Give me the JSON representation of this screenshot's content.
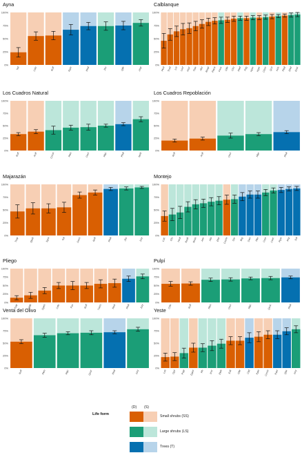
{
  "colors": {
    "SS": "#d95f02",
    "LS": "#1b9e77",
    "T": "#0570b0",
    "SS_bg": "#f7cfb4",
    "LS_bg": "#bce6da",
    "T_bg": "#b7d4ea"
  },
  "chart_data": [
    {
      "type": "bar",
      "title": "Ayna",
      "ylim": [
        0,
        100
      ],
      "yticks": [
        "0%",
        "25%",
        "50%",
        "75%",
        "100%"
      ],
      "categories": [
        "Tcil",
        "Cclu",
        "Roff",
        "Pgre",
        "Phal",
        "Jfru",
        "Qile",
        "Jrep"
      ],
      "forms": [
        "SS",
        "SS",
        "SS",
        "T",
        "T",
        "LS",
        "T",
        "LS"
      ],
      "values": [
        24,
        55,
        56,
        67,
        74,
        74,
        75,
        80
      ],
      "errors": [
        9,
        8,
        8,
        10,
        7,
        8,
        8,
        6
      ]
    },
    {
      "type": "bar",
      "title": "Calblanque",
      "ylim": [
        0,
        100
      ],
      "yticks": [
        "0%",
        "25%",
        "50%",
        "75%",
        "100%"
      ],
      "categories": [
        "Pkul",
        "Tcod",
        "Ltri",
        "Lsuf",
        "Hsyr",
        "Thar",
        "Alut",
        "Reap",
        "Flaca",
        "Foss",
        "Gfle",
        "Cfru",
        "Pbel",
        "Prlg",
        "Hpor",
        "Hgar",
        "Cfum",
        "Qcri",
        "Acis",
        "Pbal",
        "Ehel",
        "Eraz"
      ],
      "forms": [
        "SS",
        "SS",
        "SS",
        "SS",
        "SS",
        "SS",
        "SS",
        "SS",
        "SS",
        "LS",
        "SS",
        "SS",
        "LS",
        "SS",
        "LS",
        "SS",
        "LS",
        "SS",
        "LS",
        "SS",
        "LS",
        "LS"
      ],
      "values": [
        46,
        58,
        64,
        68,
        70,
        74,
        78,
        82,
        84,
        85,
        86,
        88,
        89,
        89,
        90,
        90,
        91,
        92,
        93,
        94,
        95,
        96
      ],
      "errors": [
        14,
        11,
        10,
        11,
        10,
        9,
        8,
        7,
        6,
        6,
        5,
        5,
        4,
        4,
        4,
        4,
        4,
        4,
        3,
        3,
        4,
        4
      ]
    },
    {
      "type": "bar",
      "title": "Los Cuadros Natural",
      "ylim": [
        0,
        100
      ],
      "yticks": [
        "0%",
        "25%",
        "50%",
        "75%",
        "100%"
      ],
      "categories": [
        "Roff",
        "Avyl",
        "Cmon",
        "Plen",
        "Osur",
        "Rlyc",
        "Phal",
        "Nerk"
      ],
      "forms": [
        "SS",
        "SS",
        "LS",
        "LS",
        "LS",
        "LS",
        "T",
        "LS"
      ],
      "values": [
        33,
        38,
        41,
        46,
        47,
        50,
        53,
        63
      ],
      "errors": [
        3,
        4,
        8,
        5,
        6,
        3,
        3,
        5
      ]
    },
    {
      "type": "bar",
      "title": "Los Cuadros Repoblación",
      "ylim": [
        0,
        100
      ],
      "yticks": [
        "0%",
        "25%",
        "50%",
        "75%",
        "100%"
      ],
      "categories": [
        "Roff",
        "Avyl",
        "Osur",
        "Rlyc",
        "Phal"
      ],
      "forms": [
        "SS",
        "SS",
        "LS",
        "LS",
        "T"
      ],
      "values": [
        20,
        24,
        30,
        33,
        37
      ],
      "errors": [
        3,
        3,
        5,
        3,
        3
      ]
    },
    {
      "type": "bar",
      "title": "Majarazán",
      "ylim": [
        0,
        100
      ],
      "yticks": [
        "0%",
        "25%",
        "50%",
        "75%",
        "100%"
      ],
      "categories": [
        "Tcap",
        "Sbub",
        "Sgra",
        "Tcil",
        "Gsco",
        "Roff",
        "Phal",
        "Jfru",
        "Jory"
      ],
      "forms": [
        "SS",
        "SS",
        "SS",
        "SS",
        "SS",
        "SS",
        "T",
        "LS",
        "LS"
      ],
      "values": [
        47,
        53,
        53,
        55,
        79,
        84,
        91,
        92,
        94
      ],
      "errors": [
        13,
        11,
        9,
        10,
        6,
        5,
        3,
        3,
        2
      ]
    },
    {
      "type": "bar",
      "title": "Montejo",
      "ylim": [
        0,
        100
      ],
      "yticks": [
        "0%",
        "25%",
        "50%",
        "75%",
        "100%"
      ],
      "categories": [
        "Lstc",
        "Gfo",
        "Hsal",
        "Rsab",
        "Rcan",
        "Jrec",
        "Alsi",
        "Ehtr",
        "Cscrix",
        "Ssc",
        "Ileg",
        "Swo",
        "Pler",
        "Cres",
        "Ccec",
        "Pgre",
        "Pcp",
        "Sol"
      ],
      "forms": [
        "SS",
        "LS",
        "LS",
        "LS",
        "LS",
        "LS",
        "LS",
        "LS",
        "SS",
        "LS",
        "T",
        "T",
        "T",
        "LS",
        "LS",
        "T",
        "T",
        "T"
      ],
      "values": [
        38,
        41,
        45,
        56,
        61,
        63,
        66,
        68,
        70,
        71,
        76,
        80,
        80,
        84,
        88,
        89,
        91,
        92
      ],
      "errors": [
        10,
        12,
        12,
        10,
        9,
        8,
        8,
        8,
        9,
        8,
        8,
        7,
        7,
        6,
        5,
        5,
        4,
        4
      ]
    },
    {
      "type": "bar",
      "title": "Pliego",
      "ylim": [
        0,
        100
      ],
      "yticks": [
        "0%",
        "25%",
        "50%",
        "75%",
        "100%"
      ],
      "categories": [
        "Tcap",
        "Hhlb",
        "Dpen",
        "Cclu",
        "Fav",
        "Roff",
        "Tvero",
        "Ravi",
        "Phal",
        "Jory"
      ],
      "forms": [
        "SS",
        "SS",
        "SS",
        "SS",
        "SS",
        "SS",
        "SS",
        "SS",
        "T",
        "LS"
      ],
      "values": [
        14,
        21,
        35,
        50,
        50,
        50,
        55,
        57,
        70,
        77
      ],
      "errors": [
        6,
        9,
        9,
        9,
        12,
        9,
        12,
        12,
        8,
        7
      ]
    },
    {
      "type": "bar",
      "title": "Pulpí",
      "ylim": [
        0,
        100
      ],
      "yticks": [
        "0%",
        "25%",
        "50%",
        "75%",
        "100%"
      ],
      "categories": [
        "Cclu",
        "Roff",
        "Plen",
        "Osur",
        "Rlyc",
        "Qcoc",
        "Phal"
      ],
      "forms": [
        "SS",
        "SS",
        "LS",
        "LS",
        "LS",
        "LS",
        "T"
      ],
      "values": [
        55,
        56,
        67,
        68,
        71,
        72,
        74
      ],
      "errors": [
        7,
        5,
        5,
        5,
        4,
        5,
        4
      ]
    },
    {
      "type": "bar",
      "title": "Venta del Olivo",
      "ylim": [
        0,
        100
      ],
      "yticks": [
        "0%",
        "25%",
        "50%",
        "75%",
        "100%"
      ],
      "categories": [
        "Roff",
        "Plen",
        "Rlyc",
        "Qcoc",
        "Phal",
        "Jory"
      ],
      "forms": [
        "SS",
        "LS",
        "LS",
        "LS",
        "T",
        "LS"
      ],
      "values": [
        53,
        66,
        70,
        71,
        72,
        78
      ],
      "errors": [
        4,
        4,
        3,
        4,
        3,
        4
      ]
    },
    {
      "type": "bar",
      "title": "Yeste",
      "ylim": [
        0,
        100
      ],
      "yticks": [
        "0%",
        "25%",
        "50%",
        "75%",
        "100%"
      ],
      "categories": [
        "Lsti",
        "Ogri",
        "Papi",
        "Dpen",
        "Rfr",
        "Jcor",
        "Eleh",
        "Eslt",
        "Gfle",
        "Ctid",
        "Ppin",
        "Cmon",
        "Paet",
        "Qlar",
        "Jory"
      ],
      "forms": [
        "SS",
        "SS",
        "LS",
        "SS",
        "LS",
        "LS",
        "LS",
        "SS",
        "SS",
        "T",
        "SS",
        "SS",
        "T",
        "T",
        "LS"
      ],
      "values": [
        22,
        23,
        30,
        41,
        41,
        45,
        49,
        55,
        55,
        61,
        63,
        67,
        67,
        74,
        78
      ],
      "errors": [
        8,
        8,
        10,
        9,
        8,
        10,
        9,
        8,
        8,
        10,
        10,
        8,
        8,
        7,
        7
      ]
    }
  ],
  "legend": {
    "title": "Life form",
    "col_d": "(D)",
    "col_s": "(S)",
    "items": [
      {
        "label": "Small shrubs (SS)",
        "form": "SS"
      },
      {
        "label": "Large shrubs (LS)",
        "form": "LS"
      },
      {
        "label": "Trees (T)",
        "form": "T"
      }
    ]
  }
}
